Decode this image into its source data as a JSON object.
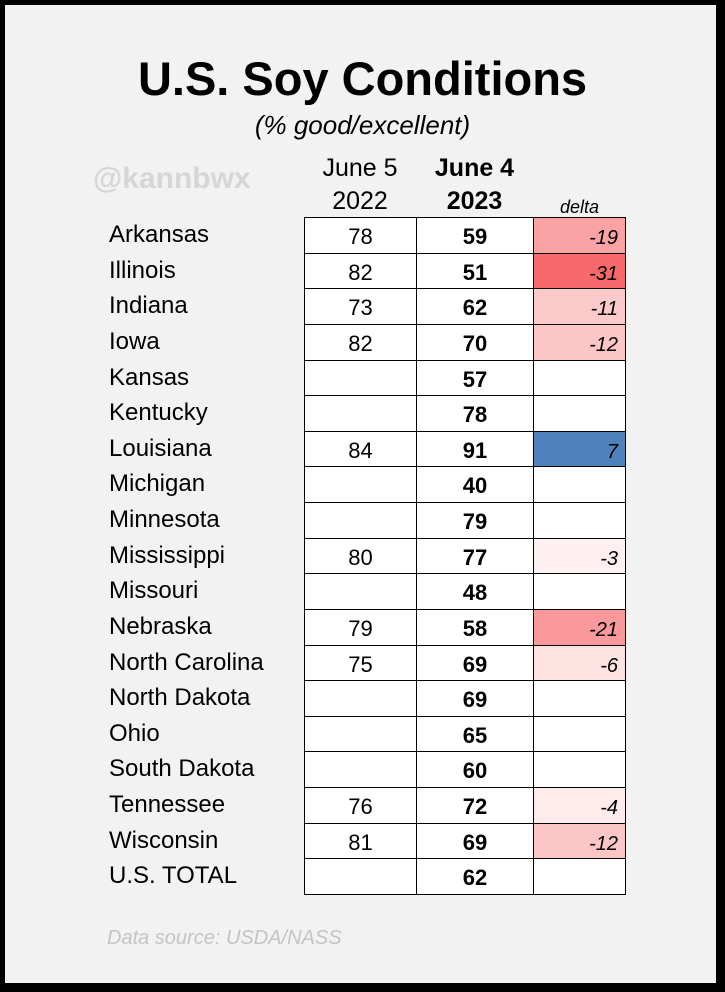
{
  "chart_data": {
    "type": "table",
    "title": "U.S. Soy Conditions",
    "subtitle": "(% good/excellent)",
    "watermark": "@kannbwx",
    "columns": {
      "prev_line1": "June 5",
      "prev_line2": "2022",
      "curr_line1": "June 4",
      "curr_line2": "2023",
      "delta": "delta"
    },
    "rows": [
      {
        "state": "Arkansas",
        "prev": "78",
        "curr": "59",
        "delta": "-19"
      },
      {
        "state": "Illinois",
        "prev": "82",
        "curr": "51",
        "delta": "-31"
      },
      {
        "state": "Indiana",
        "prev": "73",
        "curr": "62",
        "delta": "-11"
      },
      {
        "state": "Iowa",
        "prev": "82",
        "curr": "70",
        "delta": "-12"
      },
      {
        "state": "Kansas",
        "prev": "",
        "curr": "57",
        "delta": ""
      },
      {
        "state": "Kentucky",
        "prev": "",
        "curr": "78",
        "delta": ""
      },
      {
        "state": "Louisiana",
        "prev": "84",
        "curr": "91",
        "delta": "7"
      },
      {
        "state": "Michigan",
        "prev": "",
        "curr": "40",
        "delta": ""
      },
      {
        "state": "Minnesota",
        "prev": "",
        "curr": "79",
        "delta": ""
      },
      {
        "state": "Mississippi",
        "prev": "80",
        "curr": "77",
        "delta": "-3"
      },
      {
        "state": "Missouri",
        "prev": "",
        "curr": "48",
        "delta": ""
      },
      {
        "state": "Nebraska",
        "prev": "79",
        "curr": "58",
        "delta": "-21"
      },
      {
        "state": "North Carolina",
        "prev": "75",
        "curr": "69",
        "delta": "-6"
      },
      {
        "state": "North Dakota",
        "prev": "",
        "curr": "69",
        "delta": ""
      },
      {
        "state": "Ohio",
        "prev": "",
        "curr": "65",
        "delta": ""
      },
      {
        "state": "South Dakota",
        "prev": "",
        "curr": "60",
        "delta": ""
      },
      {
        "state": "Tennessee",
        "prev": "76",
        "curr": "72",
        "delta": "-4"
      },
      {
        "state": "Wisconsin",
        "prev": "81",
        "curr": "69",
        "delta": "-12"
      },
      {
        "state": "U.S. TOTAL",
        "prev": "",
        "curr": "62",
        "delta": ""
      }
    ],
    "colors": {
      "negative_max": "#f8696b",
      "negative_min": "#ffffff",
      "positive": "#4f81bd",
      "background": "#f2f2f2"
    },
    "source": "Data source: USDA/NASS"
  }
}
